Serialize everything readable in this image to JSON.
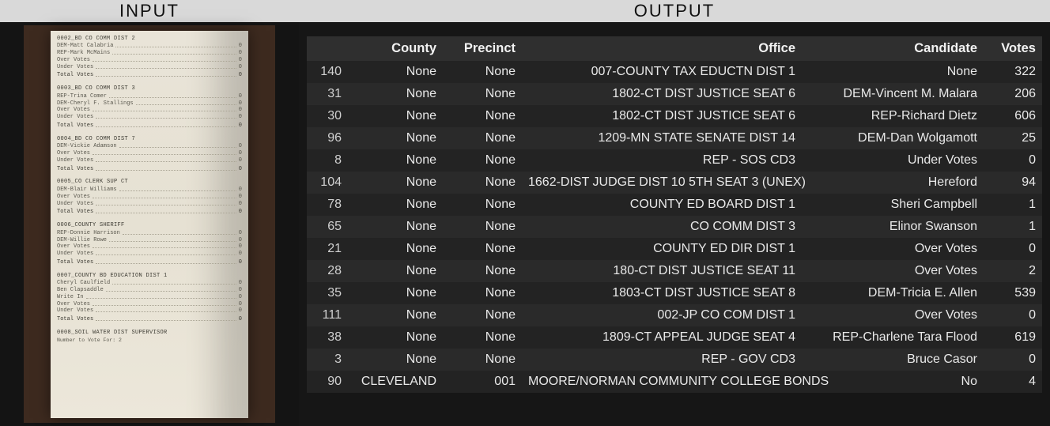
{
  "header": {
    "input_label": "INPUT",
    "output_label": "OUTPUT"
  },
  "receipt": {
    "sections": [
      {
        "header": "0002_BD CO COMM DIST 2",
        "lines": [
          {
            "label": "DEM-Matt Calabria",
            "val": "0"
          },
          {
            "label": "REP-Mark McMains",
            "val": "0"
          },
          {
            "label": "Over Votes",
            "val": "0"
          },
          {
            "label": "Under Votes",
            "val": "0"
          }
        ],
        "total": {
          "label": "Total Votes",
          "val": "0"
        }
      },
      {
        "header": "0003_BD CO COMM DIST 3",
        "lines": [
          {
            "label": "REP-Trina Comer",
            "val": "0"
          },
          {
            "label": "DEM-Cheryl F. Stallings",
            "val": "0"
          },
          {
            "label": "Over Votes",
            "val": "0"
          },
          {
            "label": "Under Votes",
            "val": "0"
          }
        ],
        "total": {
          "label": "Total Votes",
          "val": "0"
        }
      },
      {
        "header": "0004_BD CO COMM DIST 7",
        "lines": [
          {
            "label": "DEM-Vickie Adamson",
            "val": "0"
          },
          {
            "label": "Over Votes",
            "val": "0"
          },
          {
            "label": "Under Votes",
            "val": "0"
          }
        ],
        "total": {
          "label": "Total Votes",
          "val": "0"
        }
      },
      {
        "header": "0005_CO CLERK SUP CT",
        "lines": [
          {
            "label": "DEM-Blair Williams",
            "val": "0"
          },
          {
            "label": "Over Votes",
            "val": "0"
          },
          {
            "label": "Under Votes",
            "val": "0"
          }
        ],
        "total": {
          "label": "Total Votes",
          "val": "0"
        }
      },
      {
        "header": "0006_COUNTY SHERIFF",
        "lines": [
          {
            "label": "REP-Donnie Harrison",
            "val": "0"
          },
          {
            "label": "DEM-Willie Rowe",
            "val": "0"
          },
          {
            "label": "Over Votes",
            "val": "0"
          },
          {
            "label": "Under Votes",
            "val": "0"
          }
        ],
        "total": {
          "label": "Total Votes",
          "val": "0"
        }
      },
      {
        "header": "0007_COUNTY BD EDUCATION DIST 1",
        "lines": [
          {
            "label": "Cheryl Caulfield",
            "val": "0"
          },
          {
            "label": "Ben Clapsaddle",
            "val": "0"
          },
          {
            "label": "Write In",
            "val": "0"
          },
          {
            "label": "Over Votes",
            "val": "0"
          },
          {
            "label": "Under Votes",
            "val": "0"
          }
        ],
        "total": {
          "label": "Total Votes",
          "val": "0"
        }
      },
      {
        "header": "0008_SOIL WATER DIST SUPERVISOR",
        "subtitle": "Number to Vote For: 2",
        "lines": []
      }
    ]
  },
  "table": {
    "columns": [
      "",
      "County",
      "Precinct",
      "Office",
      "Candidate",
      "Votes"
    ],
    "rows": [
      [
        "140",
        "None",
        "None",
        "007-COUNTY TAX EDUCTN DIST 1",
        "None",
        "322"
      ],
      [
        "31",
        "None",
        "None",
        "1802-CT DIST JUSTICE SEAT 6",
        "DEM-Vincent M. Malara",
        "206"
      ],
      [
        "30",
        "None",
        "None",
        "1802-CT DIST JUSTICE SEAT 6",
        "REP-Richard Dietz",
        "606"
      ],
      [
        "96",
        "None",
        "None",
        "1209-MN STATE SENATE DIST 14",
        "DEM-Dan Wolgamott",
        "25"
      ],
      [
        "8",
        "None",
        "None",
        "REP - SOS CD3",
        "Under Votes",
        "0"
      ],
      [
        "104",
        "None",
        "None",
        "1662-DIST JUDGE DIST 10 5TH SEAT 3 (UNEX)",
        "Hereford",
        "94"
      ],
      [
        "78",
        "None",
        "None",
        "COUNTY ED BOARD DIST 1",
        "Sheri Campbell",
        "1"
      ],
      [
        "65",
        "None",
        "None",
        "CO COMM DIST 3",
        "Elinor Swanson",
        "1"
      ],
      [
        "21",
        "None",
        "None",
        "COUNTY ED DIR DIST 1",
        "Over Votes",
        "0"
      ],
      [
        "28",
        "None",
        "None",
        "180-CT DIST JUSTICE SEAT 11",
        "Over Votes",
        "2"
      ],
      [
        "35",
        "None",
        "None",
        "1803-CT DIST JUSTICE SEAT 8",
        "DEM-Tricia E. Allen",
        "539"
      ],
      [
        "111",
        "None",
        "None",
        "002-JP CO COM DIST 1",
        "Over Votes",
        "0"
      ],
      [
        "38",
        "None",
        "None",
        "1809-CT APPEAL JUDGE SEAT 4",
        "REP-Charlene Tara Flood",
        "619"
      ],
      [
        "3",
        "None",
        "None",
        "REP - GOV CD3",
        "Bruce Casor",
        "0"
      ],
      [
        "90",
        "CLEVELAND",
        "001",
        "MOORE/NORMAN COMMUNITY COLLEGE BONDS",
        "No",
        "4"
      ]
    ]
  }
}
